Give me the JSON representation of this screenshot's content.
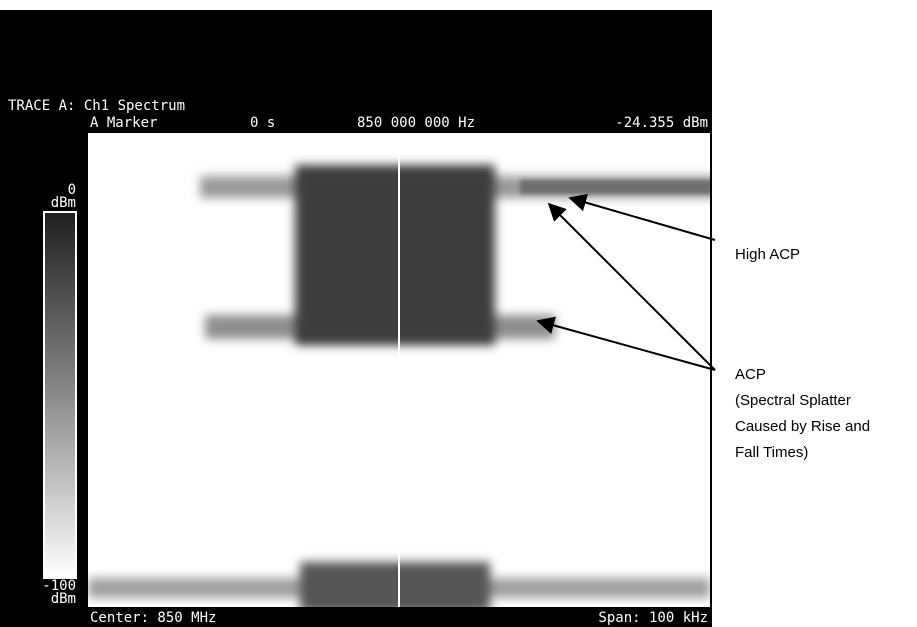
{
  "trace_title": "TRACE A: Ch1 Spectrum",
  "marker": {
    "label": "A Marker",
    "time": "0 s",
    "frequency": "850 000 000 Hz",
    "level": "-24.355 dBm"
  },
  "scale": {
    "top": "0",
    "top_unit": "dBm",
    "bottom": "-100",
    "bottom_unit": "dBm"
  },
  "footer": {
    "center": "Center: 850 MHz",
    "span": "Span: 100 kHz"
  },
  "annotations": {
    "high_acp": "High ACP",
    "acp": [
      "ACP",
      "(Spectral Splatter",
      "Caused by Rise and",
      "Fall Times)"
    ]
  }
}
